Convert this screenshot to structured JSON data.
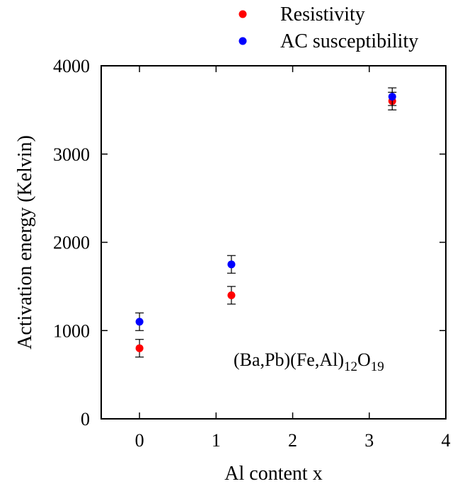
{
  "chart_data": {
    "type": "scatter",
    "xlabel": "Al content x",
    "ylabel": "Activation energy (Kelvin)",
    "xlim": [
      -0.5,
      4
    ],
    "ylim": [
      0,
      4000
    ],
    "x_ticks": [
      "0",
      "1",
      "2",
      "3",
      "4"
    ],
    "y_ticks": [
      "0",
      "1000",
      "2000",
      "3000",
      "4000"
    ],
    "legend_position": "top-right-outside",
    "annotation": {
      "base": "(Ba,Pb)(Fe,Al)",
      "sub1": "12",
      "mid": "O",
      "sub2": "19"
    },
    "series": [
      {
        "name": "Resistivity",
        "color": "#ff0000",
        "points": [
          {
            "x": 0,
            "y": 800,
            "err": 100
          },
          {
            "x": 1.2,
            "y": 1400,
            "err": 100
          },
          {
            "x": 3.3,
            "y": 3600,
            "err": 100
          }
        ]
      },
      {
        "name": "AC susceptibility",
        "color": "#0000ff",
        "points": [
          {
            "x": 0,
            "y": 1100,
            "err": 100
          },
          {
            "x": 1.2,
            "y": 1750,
            "err": 100
          },
          {
            "x": 3.3,
            "y": 3650,
            "err": 100
          }
        ]
      }
    ]
  }
}
